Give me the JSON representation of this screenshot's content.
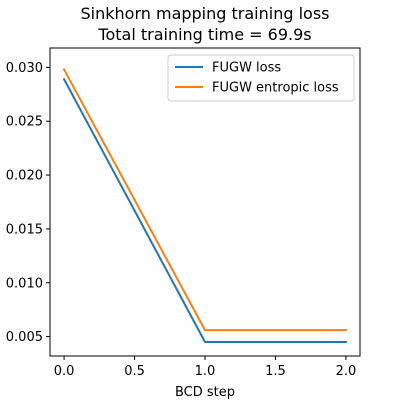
{
  "chart_data": {
    "type": "line",
    "title_line1": "Sinkhorn mapping training loss",
    "title_line2": "Total training time = 69.9s",
    "xlabel": "BCD step",
    "ylabel": "",
    "x": [
      0.0,
      1.0,
      2.0
    ],
    "xlim": [
      -0.1,
      2.1
    ],
    "ylim": [
      0.0032,
      0.0318
    ],
    "xticks": [
      0.0,
      0.5,
      1.0,
      1.5,
      2.0
    ],
    "xtick_labels": [
      "0.0",
      "0.5",
      "1.0",
      "1.5",
      "2.0"
    ],
    "yticks": [
      0.005,
      0.01,
      0.015,
      0.02,
      0.025,
      0.03
    ],
    "ytick_labels": [
      "0.005",
      "0.010",
      "0.015",
      "0.020",
      "0.025",
      "0.030"
    ],
    "grid": false,
    "legend_position": "top-right",
    "series": [
      {
        "name": "FUGW loss",
        "color": "#1f77b4",
        "values": [
          0.0289,
          0.0045,
          0.0045
        ]
      },
      {
        "name": "FUGW entropic loss",
        "color": "#ff7f0e",
        "values": [
          0.0298,
          0.0056,
          0.0056
        ]
      }
    ]
  }
}
